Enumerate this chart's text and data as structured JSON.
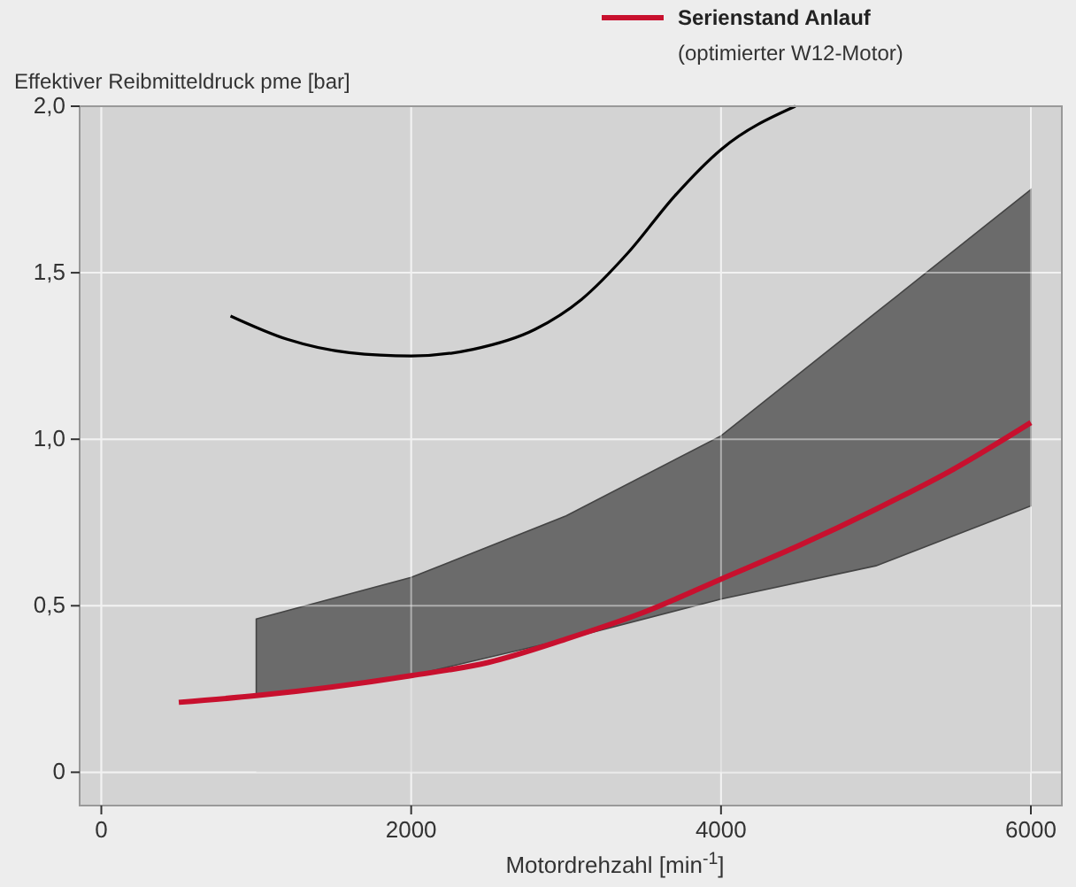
{
  "chart_data": {
    "type": "line",
    "ylabel": "Effektiver Reibmitteldruck pme [bar]",
    "xlabel": "Motordrehzahl [min$^{-1}$]",
    "xlim": [
      -140,
      6200
    ],
    "ylim": [
      -0.1,
      2.0
    ],
    "xticks": [
      0,
      2000,
      4000,
      6000
    ],
    "yticks": [
      {
        "value": 0,
        "label": "0"
      },
      {
        "value": 0.5,
        "label": "0,5"
      },
      {
        "value": 1.0,
        "label": "1,0"
      },
      {
        "value": 1.5,
        "label": "1,5"
      },
      {
        "value": 2.0,
        "label": "2,0"
      }
    ],
    "grid": true,
    "stacked": true,
    "legend": "top right",
    "series": [
      {
        "type": "area",
        "color": "#d3d3d3",
        "x": [
          1000,
          2000,
          3000,
          4000,
          5000,
          6000
        ],
        "values": [
          0.23,
          0.29,
          0.4,
          0.52,
          0.62,
          0.8
        ]
      },
      {
        "type": "area",
        "color": "#6b6b6b",
        "x": [
          1000,
          2000,
          3000,
          4000,
          5000,
          6000
        ],
        "values": [
          0.23,
          0.295,
          0.37,
          0.49,
          0.76,
          0.95
        ]
      },
      {
        "name": "Serienstand Anlauf",
        "color": "#c8102e",
        "x": [
          500,
          1000,
          2000,
          2500,
          3000,
          3500,
          4000,
          4500,
          5000,
          5500,
          6000
        ],
        "values": [
          0.21,
          0.23,
          0.29,
          0.33,
          0.4,
          0.48,
          0.58,
          0.68,
          0.79,
          0.91,
          1.05
        ]
      },
      {
        "color": "#000000",
        "x": [
          834,
          1200,
          1600,
          2000,
          2400,
          2800,
          3100,
          3400,
          3700,
          4000,
          4480
        ],
        "values": [
          1.37,
          1.3,
          1.26,
          1.25,
          1.27,
          1.33,
          1.42,
          1.56,
          1.73,
          1.87,
          2.0
        ]
      }
    ],
    "annotations": [
      "(optimierter W12-Motor)"
    ]
  }
}
